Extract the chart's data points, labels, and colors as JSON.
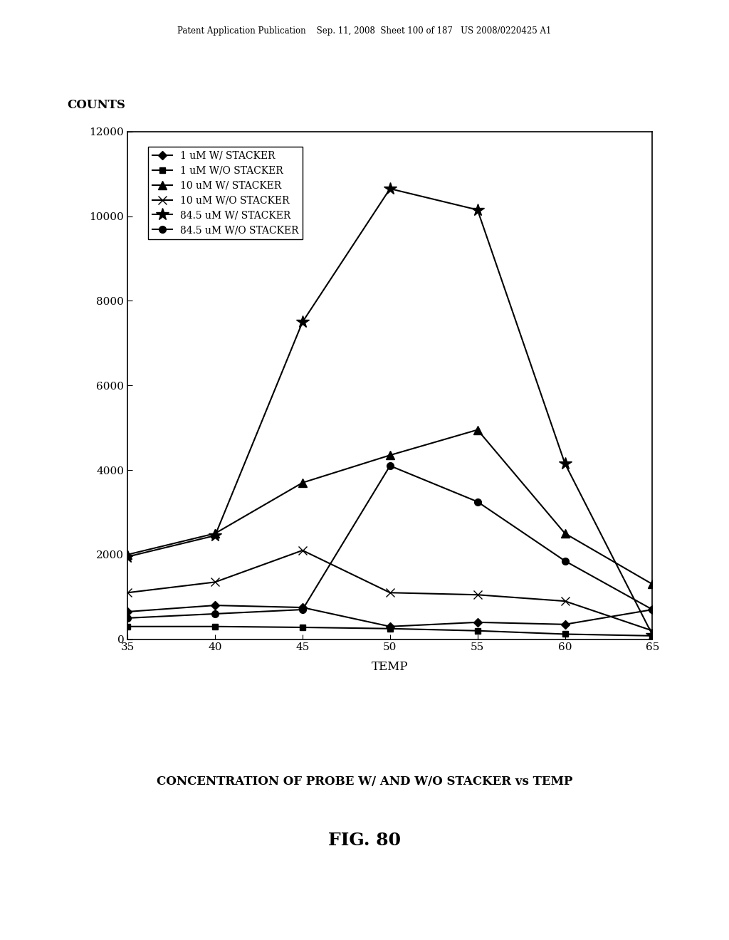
{
  "x": [
    35,
    40,
    45,
    50,
    55,
    60,
    65
  ],
  "series": [
    {
      "label": "1 uM W/ STACKER",
      "marker": "D",
      "markersize": 6,
      "y": [
        650,
        800,
        750,
        300,
        400,
        350,
        700
      ]
    },
    {
      "label": "1 uM W/O STACKER",
      "marker": "s",
      "markersize": 6,
      "y": [
        300,
        300,
        280,
        250,
        200,
        120,
        80
      ]
    },
    {
      "label": "10 uM W/ STACKER",
      "marker": "^",
      "markersize": 8,
      "y": [
        2000,
        2500,
        3700,
        4350,
        4950,
        2500,
        1300
      ]
    },
    {
      "label": "10 uM W/O STACKER",
      "marker": "x",
      "markersize": 9,
      "y": [
        1100,
        1350,
        2100,
        1100,
        1050,
        900,
        200
      ]
    },
    {
      "label": "84.5 uM W/ STACKER",
      "marker": "*",
      "markersize": 13,
      "y": [
        1950,
        2450,
        7500,
        10650,
        10150,
        4150,
        100
      ]
    },
    {
      "label": "84.5 uM W/O STACKER",
      "marker": "o",
      "markersize": 7,
      "y": [
        500,
        600,
        700,
        4100,
        3250,
        1850,
        700
      ]
    }
  ],
  "xlabel": "TEMP",
  "ylabel": "COUNTS",
  "ylim": [
    0,
    12000
  ],
  "xlim": [
    35,
    65
  ],
  "yticks": [
    0,
    2000,
    4000,
    6000,
    8000,
    10000,
    12000
  ],
  "xticks": [
    35,
    40,
    45,
    50,
    55,
    60,
    65
  ],
  "title": "CONCENTRATION OF PROBE W/ AND W/O STACKER vs TEMP",
  "fig_label": "FIG. 80",
  "header": "Patent Application Publication    Sep. 11, 2008  Sheet 100 of 187   US 2008/0220425 A1",
  "line_color": "black",
  "bg_color": "white",
  "legend_fontsize": 10,
  "axis_label_fontsize": 12,
  "tick_fontsize": 11,
  "title_fontsize": 12,
  "fig_label_fontsize": 18
}
